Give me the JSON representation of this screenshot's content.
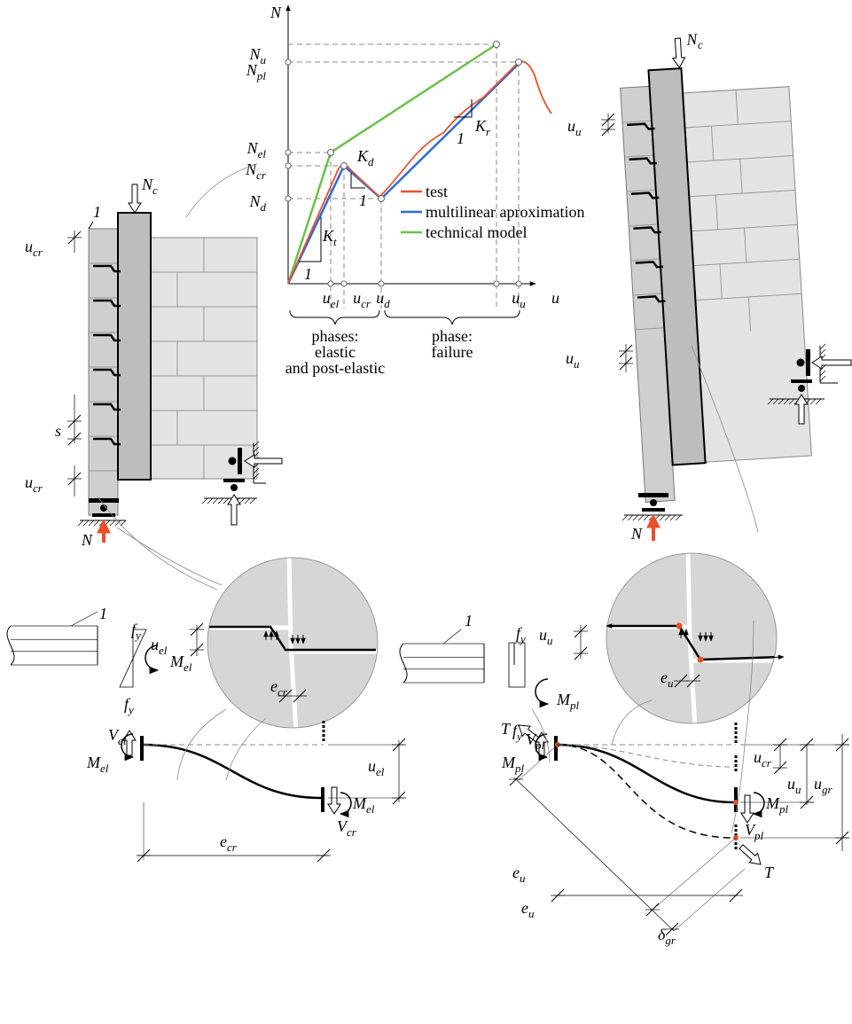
{
  "graph": {
    "y_axis": "N",
    "x_axis": "u",
    "y_labels": [
      {
        "base": "N",
        "sub": "u"
      },
      {
        "base": "N",
        "sub": "pl"
      },
      {
        "base": "N",
        "sub": "el"
      },
      {
        "base": "N",
        "sub": "cr"
      },
      {
        "base": "N",
        "sub": "d"
      }
    ],
    "x_labels": [
      {
        "base": "u",
        "sub": "el"
      },
      {
        "base": "u",
        "sub": "cr"
      },
      {
        "base": "u",
        "sub": "d"
      },
      {
        "base": "u",
        "sub": "u"
      }
    ],
    "stiffness": [
      {
        "base": "K",
        "sub": "d"
      },
      {
        "base": "K",
        "sub": "t"
      },
      {
        "base": "K",
        "sub": "r"
      }
    ],
    "slope_unit": "1",
    "legend": [
      "test",
      "multilinear aproximation",
      "technical model"
    ],
    "phases": [
      [
        "phases:",
        "elastic",
        "and post-elastic"
      ],
      [
        "phase:",
        "failure"
      ]
    ]
  },
  "left_wall": {
    "member": "1",
    "load": {
      "base": "N",
      "sub": "c"
    },
    "top_disp": {
      "base": "u",
      "sub": "cr"
    },
    "spacing": "s",
    "bottom_disp": {
      "base": "u",
      "sub": "cr"
    },
    "reaction": "N"
  },
  "right_wall": {
    "load": {
      "base": "N",
      "sub": "c"
    },
    "top_disp": {
      "base": "u",
      "sub": "u"
    },
    "bottom_disp": {
      "base": "u",
      "sub": "u"
    },
    "reaction": "N"
  },
  "left_detail": {
    "disp": {
      "base": "u",
      "sub": "el"
    },
    "ecc": {
      "base": "e",
      "sub": "cr"
    }
  },
  "right_detail": {
    "disp": {
      "base": "u",
      "sub": "u"
    },
    "ecc": {
      "base": "e",
      "sub": "u"
    }
  },
  "left_section": {
    "member": "1",
    "stress_top": {
      "base": "f",
      "sub": "y"
    },
    "stress_bottom": {
      "base": "f",
      "sub": "y"
    },
    "moment": {
      "base": "M",
      "sub": "el"
    }
  },
  "right_section": {
    "member": "1",
    "stress_top": {
      "base": "f",
      "sub": "y"
    },
    "stress_bottom": {
      "base": "f",
      "sub": "y"
    },
    "moment": {
      "base": "M",
      "sub": "pl"
    }
  },
  "left_beam": {
    "shear_left": {
      "base": "V",
      "sub": "el"
    },
    "moment_left": {
      "base": "M",
      "sub": "el"
    },
    "moment_right": {
      "base": "M",
      "sub": "el"
    },
    "shear_right": {
      "base": "V",
      "sub": "cr"
    },
    "disp": {
      "base": "u",
      "sub": "el"
    },
    "length": {
      "base": "e",
      "sub": "cr"
    }
  },
  "right_beam": {
    "tension_left": "T",
    "shear_left": {
      "base": "V",
      "sub": "pl"
    },
    "moment_left": {
      "base": "M",
      "sub": "pl"
    },
    "moment_right": {
      "base": "M",
      "sub": "pl"
    },
    "shear_right": {
      "base": "V",
      "sub": "pl"
    },
    "tension_right": "T",
    "disp_cr": {
      "base": "u",
      "sub": "cr"
    },
    "disp_u": {
      "base": "u",
      "sub": "u"
    },
    "disp_gr": {
      "base": "u",
      "sub": "gr"
    },
    "length_diag": {
      "base": "e",
      "sub": "u"
    },
    "length": {
      "base": "e",
      "sub": "u"
    },
    "delta": {
      "base": "δ",
      "sub": "gr"
    }
  }
}
